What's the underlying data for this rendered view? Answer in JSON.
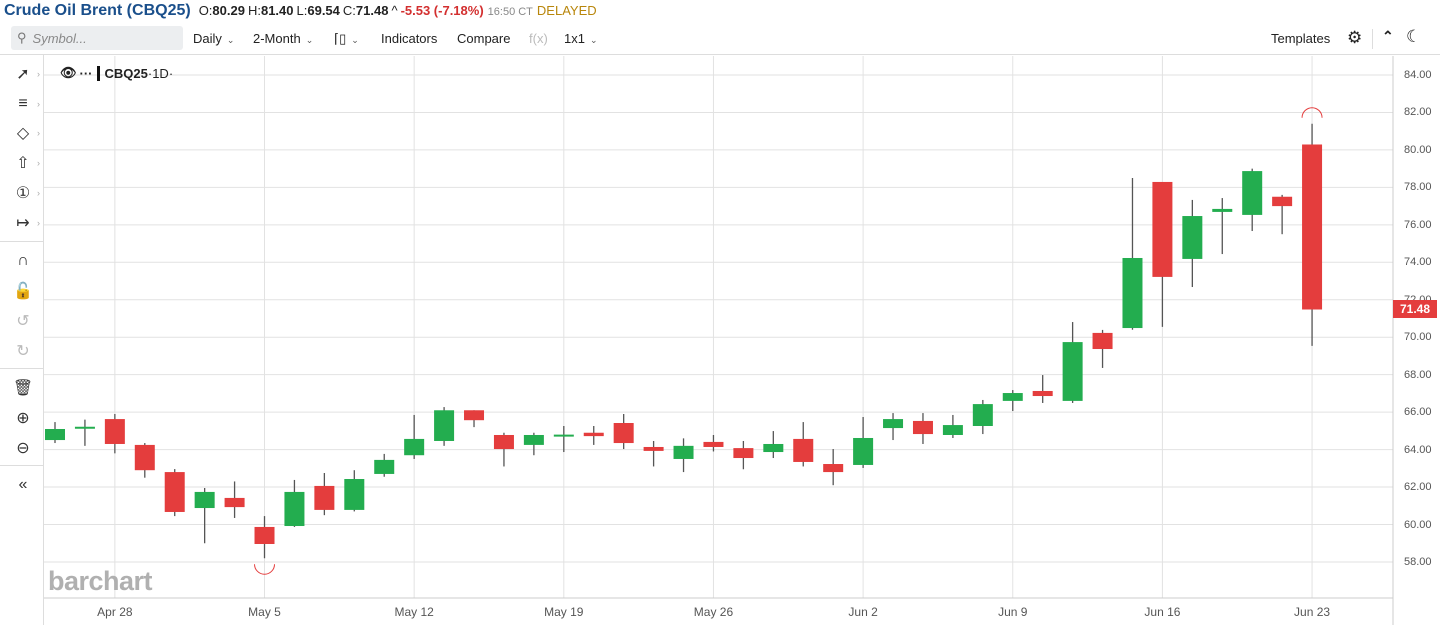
{
  "header": {
    "title": "Crude Oil Brent (CBQ25)",
    "open_label": "O:",
    "open": "80.29",
    "high_label": "H:",
    "high": "81.40",
    "low_label": "L:",
    "low": "69.54",
    "close_label": "C:",
    "close": "71.48",
    "change_arrow": "^",
    "change": "-5.53 (-7.18%)",
    "time": "16:50 CT",
    "status": "DELAYED"
  },
  "toolbar": {
    "search_placeholder": "Symbol...",
    "interval": "Daily",
    "range": "2-Month",
    "chart_type_icon": "candlestick-icon",
    "indicators": "Indicators",
    "compare": "Compare",
    "fx": "f(x)",
    "layout": "1x1",
    "templates": "Templates"
  },
  "legend": {
    "symbol": "CBQ25",
    "timeframe": "·1D·"
  },
  "logo": "barchart",
  "colors": {
    "up": "#23ad4f",
    "down": "#e43d3d",
    "grid": "#e2e2e2",
    "accent": "#1a4f8b"
  },
  "chart_data": {
    "type": "candlestick",
    "title": "Crude Oil Brent (CBQ25)",
    "xlabel": "",
    "ylabel": "",
    "ylim": [
      56.6,
      84.6
    ],
    "grid": true,
    "y_ticks": [
      "84.00",
      "82.00",
      "80.00",
      "78.00",
      "76.00",
      "74.00",
      "72.00",
      "70.00",
      "68.00",
      "66.00",
      "64.00",
      "62.00",
      "60.00",
      "58.00"
    ],
    "x_ticks": [
      {
        "label": "Apr 28",
        "index": 2
      },
      {
        "label": "May 5",
        "index": 7
      },
      {
        "label": "May 12",
        "index": 12
      },
      {
        "label": "May 19",
        "index": 17
      },
      {
        "label": "May 26",
        "index": 22
      },
      {
        "label": "Jun 2",
        "index": 27
      },
      {
        "label": "Jun 9",
        "index": 32
      },
      {
        "label": "Jun 16",
        "index": 37
      },
      {
        "label": "Jun 23",
        "index": 42
      }
    ],
    "last_price": "71.48",
    "candles": [
      {
        "d": "Apr 24",
        "o": 64.51,
        "h": 65.47,
        "l": 64.35,
        "c": 65.1
      },
      {
        "d": "Apr 25",
        "o": 65.2,
        "h": 65.6,
        "l": 64.2,
        "c": 65.22
      },
      {
        "d": "Apr 28",
        "o": 65.63,
        "h": 65.9,
        "l": 63.8,
        "c": 64.3
      },
      {
        "d": "Apr 29",
        "o": 64.25,
        "h": 64.35,
        "l": 62.5,
        "c": 62.9
      },
      {
        "d": "Apr 30",
        "o": 62.8,
        "h": 62.96,
        "l": 60.45,
        "c": 60.67
      },
      {
        "d": "May 1",
        "o": 60.88,
        "h": 61.95,
        "l": 59.0,
        "c": 61.74
      },
      {
        "d": "May 2",
        "o": 61.42,
        "h": 62.3,
        "l": 60.35,
        "c": 60.93
      },
      {
        "d": "May 5",
        "o": 59.87,
        "h": 60.45,
        "l": 58.2,
        "c": 58.96
      },
      {
        "d": "May 6",
        "o": 59.92,
        "h": 62.38,
        "l": 59.87,
        "c": 61.74
      },
      {
        "d": "May 7",
        "o": 62.06,
        "h": 62.75,
        "l": 60.5,
        "c": 60.78
      },
      {
        "d": "May 8",
        "o": 60.78,
        "h": 62.9,
        "l": 60.7,
        "c": 62.43
      },
      {
        "d": "May 9",
        "o": 62.7,
        "h": 63.77,
        "l": 62.55,
        "c": 63.45
      },
      {
        "d": "May 12",
        "o": 63.7,
        "h": 65.85,
        "l": 63.5,
        "c": 64.57
      },
      {
        "d": "May 13",
        "o": 64.46,
        "h": 66.27,
        "l": 64.2,
        "c": 66.1
      },
      {
        "d": "May 14",
        "o": 66.1,
        "h": 66.1,
        "l": 65.2,
        "c": 65.57
      },
      {
        "d": "May 15",
        "o": 64.78,
        "h": 64.9,
        "l": 63.1,
        "c": 64.03
      },
      {
        "d": "May 16",
        "o": 64.25,
        "h": 64.9,
        "l": 63.7,
        "c": 64.78
      },
      {
        "d": "May 19",
        "o": 64.76,
        "h": 65.26,
        "l": 63.87,
        "c": 64.8
      },
      {
        "d": "May 20",
        "o": 64.9,
        "h": 65.26,
        "l": 64.25,
        "c": 64.72
      },
      {
        "d": "May 21",
        "o": 65.42,
        "h": 65.9,
        "l": 64.03,
        "c": 64.35
      },
      {
        "d": "May 22",
        "o": 64.14,
        "h": 64.46,
        "l": 63.1,
        "c": 63.93
      },
      {
        "d": "May 23",
        "o": 63.5,
        "h": 64.6,
        "l": 62.8,
        "c": 64.2
      },
      {
        "d": "May 26",
        "o": 64.41,
        "h": 64.78,
        "l": 63.9,
        "c": 64.14
      },
      {
        "d": "May 27",
        "o": 64.08,
        "h": 64.46,
        "l": 62.95,
        "c": 63.55
      },
      {
        "d": "May 28",
        "o": 63.87,
        "h": 64.99,
        "l": 63.55,
        "c": 64.3
      },
      {
        "d": "May 29",
        "o": 64.57,
        "h": 65.47,
        "l": 63.1,
        "c": 63.34
      },
      {
        "d": "May 30",
        "o": 63.23,
        "h": 64.03,
        "l": 62.1,
        "c": 62.8
      },
      {
        "d": "Jun 2",
        "o": 63.18,
        "h": 65.74,
        "l": 63.02,
        "c": 64.62
      },
      {
        "d": "Jun 3",
        "o": 65.15,
        "h": 65.95,
        "l": 64.51,
        "c": 65.63
      },
      {
        "d": "Jun 4",
        "o": 65.53,
        "h": 65.95,
        "l": 64.3,
        "c": 64.83
      },
      {
        "d": "Jun 5",
        "o": 64.78,
        "h": 65.85,
        "l": 64.62,
        "c": 65.31
      },
      {
        "d": "Jun 6",
        "o": 65.26,
        "h": 66.65,
        "l": 64.83,
        "c": 66.43
      },
      {
        "d": "Jun 9",
        "o": 66.6,
        "h": 67.18,
        "l": 66.06,
        "c": 67.02
      },
      {
        "d": "Jun 10",
        "o": 67.13,
        "h": 67.98,
        "l": 66.49,
        "c": 66.86
      },
      {
        "d": "Jun 11",
        "o": 66.6,
        "h": 70.81,
        "l": 66.49,
        "c": 69.74
      },
      {
        "d": "Jun 12",
        "o": 70.23,
        "h": 70.39,
        "l": 68.36,
        "c": 69.37
      },
      {
        "d": "Jun 13",
        "o": 70.49,
        "h": 78.5,
        "l": 70.4,
        "c": 74.23
      },
      {
        "d": "Jun 16",
        "o": 78.29,
        "h": 78.29,
        "l": 70.55,
        "c": 73.22
      },
      {
        "d": "Jun 17",
        "o": 74.18,
        "h": 77.33,
        "l": 72.68,
        "c": 76.47
      },
      {
        "d": "Jun 18",
        "o": 76.69,
        "h": 77.43,
        "l": 74.44,
        "c": 76.85
      },
      {
        "d": "Jun 19",
        "o": 76.53,
        "h": 79.0,
        "l": 75.67,
        "c": 78.87
      },
      {
        "d": "Jun 20",
        "o": 77.5,
        "h": 77.6,
        "l": 75.5,
        "c": 77.0
      },
      {
        "d": "Jun 23",
        "o": 80.29,
        "h": 81.4,
        "l": 69.54,
        "c": 71.48
      }
    ]
  }
}
